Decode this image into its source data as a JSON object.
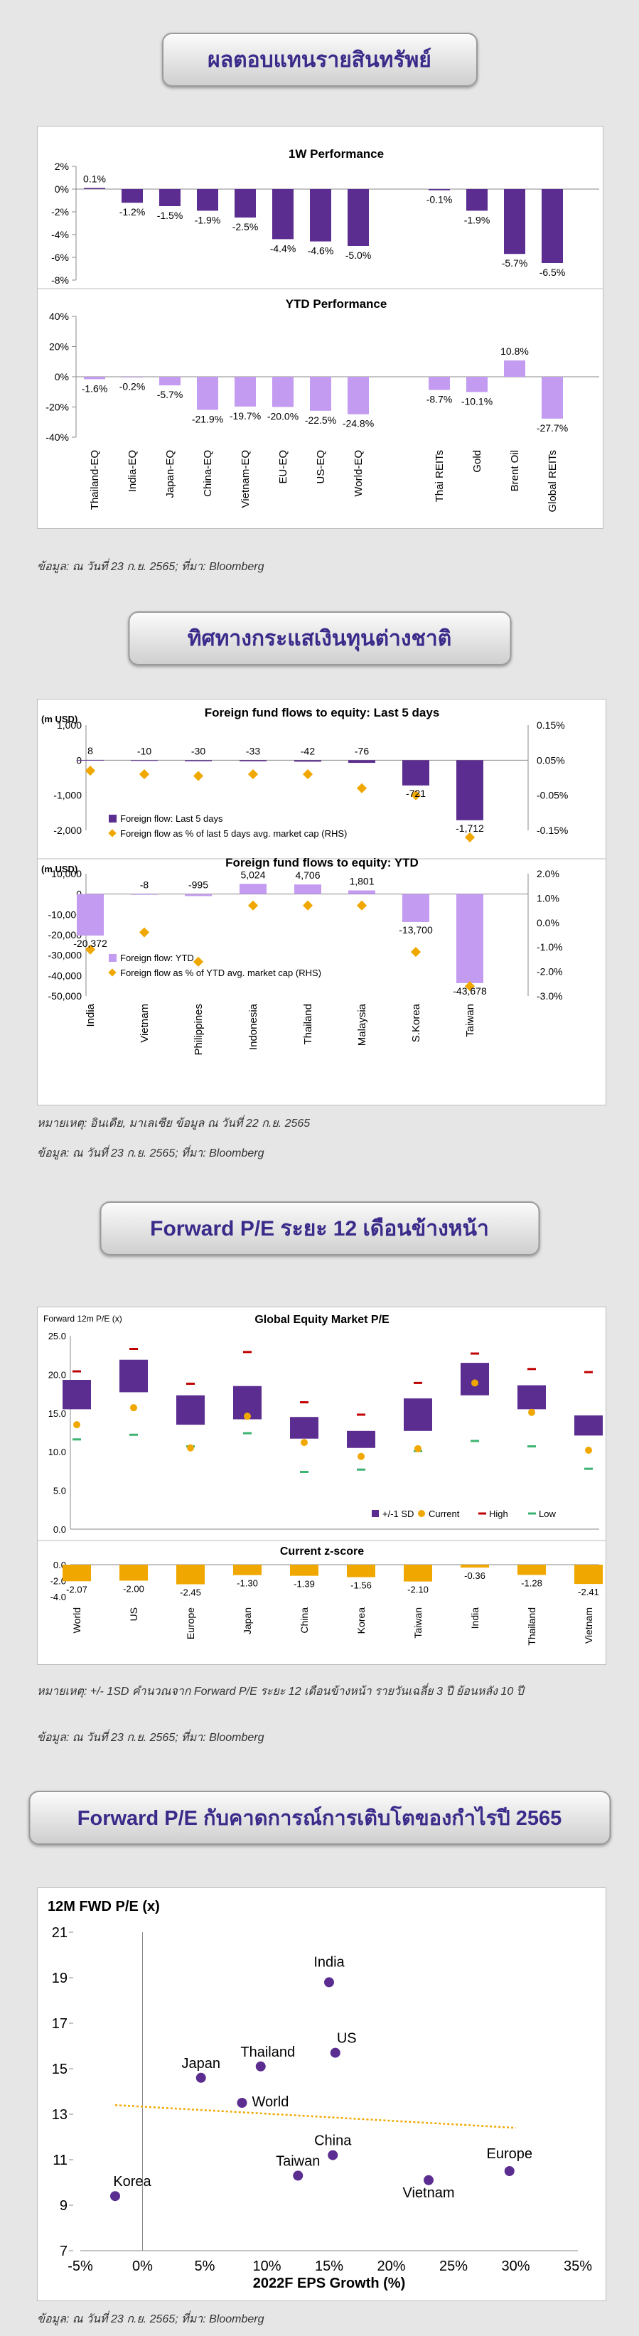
{
  "sections": {
    "s1_title": "ผลตอบแทนรายสินทรัพย์",
    "s1_source": "ข้อมูล: ณ วันที่ 23 ก.ย. 2565; ที่มา: Bloomberg",
    "s2_title": "ทิศทางกระแสเงินทุนต่างชาติ",
    "s2_note": "หมายเหตุ: อินเดีย, มาเลเซีย ข้อมูล ณ วันที่ 22 ก.ย. 2565",
    "s2_source": "ข้อมูล: ณ วันที่ 23 ก.ย. 2565; ที่มา: Bloomberg",
    "s3_title": "Forward P/E ระยะ 12 เดือนข้างหน้า",
    "s3_note": "หมายเหตุ: +/- 1SD คำนวณจาก Forward P/E ระยะ 12 เดือนข้างหน้า รายวันเฉลี่ย 3 ปี ย้อนหลัง 10 ปี",
    "s3_source": "ข้อมูล: ณ วันที่ 23 ก.ย. 2565; ที่มา: Bloomberg",
    "s4_title": "Forward P/E กับคาดการณ์การเติบโตของกำไรปี 2565",
    "s4_source": "ข้อมูล: ณ วันที่ 23 ก.ย. 2565; ที่มา: Bloomberg"
  },
  "colors": {
    "title": "#3b2a8a",
    "dark_purple": "#5b2d91",
    "light_purple": "#c39bf0",
    "orange": "#f0a800",
    "red": "#c00000",
    "green": "#3cb371"
  },
  "chart_data": [
    {
      "type": "bar",
      "title": "1W Performance",
      "categories": [
        "Thailand-EQ",
        "India-EQ",
        "Japan-EQ",
        "China-EQ",
        "Vietnam-EQ",
        "EU-EQ",
        "US-EQ",
        "World-EQ",
        "Thai REITs",
        "Gold",
        "Brent Oil",
        "Global REITs"
      ],
      "values": [
        0.1,
        -1.2,
        -1.5,
        -1.9,
        -2.5,
        -4.4,
        -4.6,
        -5.0,
        -0.1,
        -1.9,
        -5.7,
        -6.5
      ],
      "data_labels": [
        "0.1%",
        "-1.2%",
        "-1.5%",
        "-1.9%",
        "-2.5%",
        "-4.4%",
        "-4.6%",
        "-5.0%",
        "-0.1%",
        "-1.9%",
        "-5.7%",
        "-6.5%"
      ],
      "ylim": [
        -8,
        2
      ],
      "yticks": [
        "2%",
        "0%",
        "-2%",
        "-4%",
        "-6%",
        "-8%"
      ]
    },
    {
      "type": "bar",
      "title": "YTD Performance",
      "categories": [
        "Thailand-EQ",
        "India-EQ",
        "Japan-EQ",
        "China-EQ",
        "Vietnam-EQ",
        "EU-EQ",
        "US-EQ",
        "World-EQ",
        "Thai REITs",
        "Gold",
        "Brent Oil",
        "Global REITs"
      ],
      "values": [
        -1.6,
        -0.2,
        -5.7,
        -21.9,
        -19.7,
        -20.0,
        -22.5,
        -24.8,
        -8.7,
        -10.1,
        10.8,
        -27.7
      ],
      "data_labels": [
        "-1.6%",
        "-0.2%",
        "-5.7%",
        "-21.9%",
        "-19.7%",
        "-20.0%",
        "-22.5%",
        "-24.8%",
        "-8.7%",
        "-10.1%",
        "10.8%",
        "-27.7%"
      ],
      "ylim": [
        -40,
        40
      ],
      "yticks": [
        "40%",
        "20%",
        "0%",
        "-20%",
        "-40%"
      ]
    },
    {
      "type": "bar",
      "title": "Foreign fund flows to equity: Last 5 days",
      "unit_label": "(m USD)",
      "categories": [
        "India",
        "Vietnam",
        "Philippines",
        "Indonesia",
        "Thailand",
        "Malaysia",
        "S.Korea",
        "Taiwan"
      ],
      "values": [
        8,
        -10,
        -30,
        -33,
        -42,
        -76,
        -721,
        -1712
      ],
      "data_labels": [
        "8",
        "-10",
        "-30",
        "-33",
        "-42",
        "-76",
        "-721",
        "-1,712"
      ],
      "rhs_values": [
        0.02,
        0.01,
        0.005,
        0.01,
        0.01,
        -0.03,
        -0.05,
        -0.17
      ],
      "ylim": [
        -2000,
        1000
      ],
      "yticks": [
        "1,000",
        "0",
        "-1,000",
        "-2,000"
      ],
      "rhs_ylim": [
        -0.15,
        0.15
      ],
      "rhs_ticks": [
        "0.15%",
        "0.05%",
        "-0.05%",
        "-0.15%"
      ],
      "legend": [
        "Foreign flow: Last 5 days",
        "Foreign flow as % of last 5 days avg. market cap (RHS)"
      ]
    },
    {
      "type": "bar",
      "title": "Foreign fund flows to equity: YTD",
      "unit_label": "(m USD)",
      "categories": [
        "India",
        "Vietnam",
        "Philippines",
        "Indonesia",
        "Thailand",
        "Malaysia",
        "S.Korea",
        "Taiwan"
      ],
      "values": [
        -20372,
        -8,
        -995,
        5024,
        4706,
        1801,
        -13700,
        -43678
      ],
      "data_labels": [
        "-20,372",
        "-8",
        "-995",
        "5,024",
        "4,706",
        "1,801",
        "-13,700",
        "-43,678"
      ],
      "rhs_values": [
        -1.1,
        -0.4,
        -1.6,
        0.7,
        0.7,
        0.7,
        -1.2,
        -2.6
      ],
      "ylim": [
        -50000,
        10000
      ],
      "yticks": [
        "10,000",
        "0",
        "-10,000",
        "-20,000",
        "-30,000",
        "-40,000",
        "-50,000"
      ],
      "rhs_ylim": [
        -3.0,
        2.0
      ],
      "rhs_ticks": [
        "2.0%",
        "1.0%",
        "0.0%",
        "-1.0%",
        "-2.0%",
        "-3.0%"
      ],
      "legend": [
        "Foreign flow: YTD",
        "Foreign flow as % of YTD avg. market cap (RHS)"
      ]
    },
    {
      "type": "bar",
      "title": "Global Equity Market P/E",
      "unit_label": "Forward 12m P/E (x)",
      "categories": [
        "World",
        "US",
        "Europe",
        "Japan",
        "China",
        "Korea",
        "Taiwan",
        "India",
        "Thailand",
        "Vietnam"
      ],
      "sd_low": [
        15.5,
        17.7,
        13.5,
        14.2,
        11.7,
        10.5,
        12.7,
        17.3,
        15.5,
        12.1
      ],
      "sd_high": [
        19.3,
        21.9,
        17.3,
        18.5,
        14.5,
        12.7,
        16.9,
        21.5,
        18.6,
        14.7
      ],
      "current": [
        13.5,
        15.7,
        10.5,
        14.6,
        11.2,
        9.4,
        10.4,
        18.9,
        15.1,
        10.2
      ],
      "high": [
        20.4,
        23.3,
        18.8,
        22.9,
        16.4,
        14.8,
        18.9,
        22.7,
        20.7,
        20.3
      ],
      "low": [
        11.6,
        12.2,
        10.7,
        12.4,
        7.4,
        7.7,
        10.1,
        11.4,
        10.7,
        7.8
      ],
      "ylim": [
        0,
        25
      ],
      "yticks": [
        "25.0",
        "20.0",
        "15.0",
        "10.0",
        "5.0",
        "0.0"
      ],
      "legend": [
        "+/-1 SD",
        "Current",
        "High",
        "Low"
      ]
    },
    {
      "type": "bar",
      "title": "Current z-score",
      "categories": [
        "World",
        "US",
        "Europe",
        "Japan",
        "China",
        "Korea",
        "Taiwan",
        "India",
        "Thailand",
        "Vietnam"
      ],
      "values": [
        -2.07,
        -2.0,
        -2.45,
        -1.3,
        -1.39,
        -1.56,
        -2.1,
        -0.36,
        -1.28,
        -2.41
      ],
      "data_labels": [
        "-2.07",
        "-2.00",
        "-2.45",
        "-1.30",
        "-1.39",
        "-1.56",
        "-2.10",
        "-0.36",
        "-1.28",
        "-2.41"
      ],
      "ylim": [
        -4,
        0
      ],
      "yticks": [
        "0.0",
        "-2.0",
        "-4.0"
      ]
    },
    {
      "type": "scatter",
      "ylabel": "12M FWD P/E (x)",
      "xlabel": "2022F EPS Growth (%)",
      "points": [
        {
          "label": "India",
          "x": 15,
          "y": 18.8
        },
        {
          "label": "US",
          "x": 15.5,
          "y": 15.7
        },
        {
          "label": "Thailand",
          "x": 9.5,
          "y": 15.1
        },
        {
          "label": "Japan",
          "x": 4.7,
          "y": 14.6
        },
        {
          "label": "World",
          "x": 8,
          "y": 13.5
        },
        {
          "label": "China",
          "x": 15.3,
          "y": 11.2
        },
        {
          "label": "Taiwan",
          "x": 12.5,
          "y": 10.3
        },
        {
          "label": "Europe",
          "x": 29.5,
          "y": 10.5
        },
        {
          "label": "Vietnam",
          "x": 23,
          "y": 10.1
        },
        {
          "label": "Korea",
          "x": -2.2,
          "y": 9.4
        }
      ],
      "trendline": {
        "x": [
          -2.2,
          30
        ],
        "y": [
          13.4,
          12.4
        ]
      },
      "xlim": [
        -5,
        35
      ],
      "ylim": [
        7,
        21
      ],
      "xticks": [
        "-5%",
        "0%",
        "5%",
        "10%",
        "15%",
        "20%",
        "25%",
        "30%",
        "35%"
      ],
      "yticks": [
        "21",
        "19",
        "17",
        "15",
        "13",
        "11",
        "9",
        "7"
      ]
    }
  ]
}
